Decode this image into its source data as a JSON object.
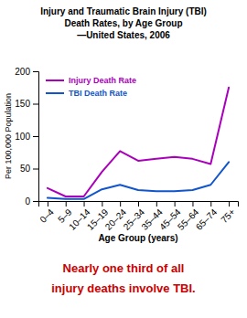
{
  "chart_data": {
    "type": "line",
    "title": [
      "Injury and Traumatic Brain Injury (TBI)",
      "Death Rates, by Age Group",
      "—United States, 2006"
    ],
    "categories": [
      "0–4",
      "5–9",
      "10–14",
      "15–19",
      "20–24",
      "25–34",
      "35–44",
      "45–54",
      "55–64",
      "65–74",
      "75+"
    ],
    "series": [
      {
        "name": "Injury Death Rate",
        "color": "#AA00BB",
        "values": [
          20,
          7,
          7,
          45,
          77,
          62,
          65,
          68,
          65,
          57,
          175
        ]
      },
      {
        "name": "TBI Death Rate",
        "color": "#1155CC",
        "values": [
          5,
          3,
          3,
          18,
          25,
          17,
          15,
          15,
          17,
          25,
          60
        ]
      }
    ],
    "x_label": "Age Group (years)",
    "y_label": "Per 100,000 Population",
    "ylim": [
      0,
      200
    ],
    "yticks": [
      0,
      50,
      100,
      150,
      200
    ],
    "grid": false,
    "legend": "top-left",
    "annotations": [
      {
        "text": "Nearly one third of all",
        "color": "#CC0000"
      },
      {
        "text": "injury deaths involve TBI.",
        "color": "#CC0000"
      }
    ]
  }
}
